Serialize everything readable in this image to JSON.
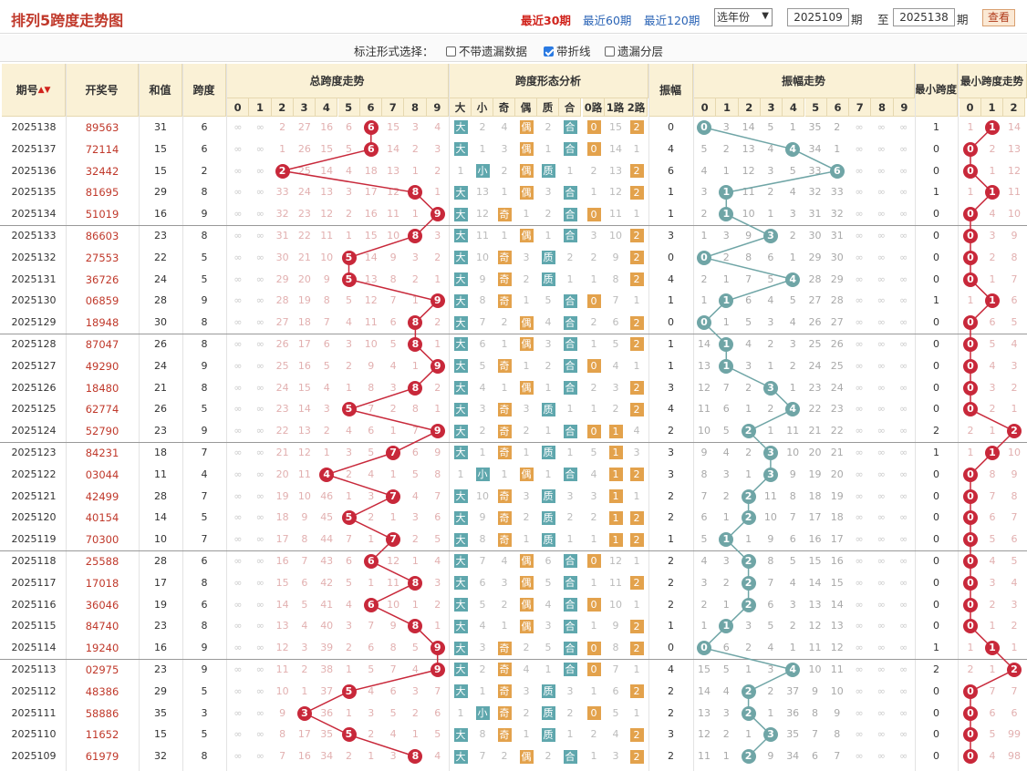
{
  "header": {
    "title": "排列5跨度走势图",
    "links": [
      "最近30期",
      "最近60期",
      "最近120期"
    ],
    "active_link": 0,
    "year_select": "选年份",
    "from_label": "期",
    "to_prefix": "至",
    "to_label": "期",
    "from_value": "2025109",
    "to_value": "2025138",
    "view_button": "查看"
  },
  "options": {
    "label": "标注形式选择：",
    "items": [
      {
        "label": "不带遗漏数据",
        "checked": false
      },
      {
        "label": "带折线",
        "checked": true
      },
      {
        "label": "遗漏分层",
        "checked": false
      }
    ]
  },
  "table_headers": {
    "period": "期号",
    "number": "开奖号",
    "sum": "和值",
    "span": "跨度",
    "span_trend": "总跨度走势",
    "shape": "跨度形态分析",
    "amp": "振幅",
    "amp_trend": "振幅走势",
    "min_span": "最小跨度",
    "min_trend": "最小跨度走势",
    "digits": [
      "0",
      "1",
      "2",
      "3",
      "4",
      "5",
      "6",
      "7",
      "8",
      "9"
    ],
    "shape_cols": [
      "大",
      "小",
      "奇",
      "偶",
      "质",
      "合",
      "0路",
      "1路",
      "2路"
    ],
    "min_cols": [
      "0",
      "1",
      "2"
    ]
  },
  "colors": {
    "red": "#c8283a",
    "teal": "#6fa5a6",
    "orange": "#e3a24c",
    "header_bg": "#faf1d6"
  },
  "rows": [
    {
      "p": "2025138",
      "n": "89563",
      "s": 31,
      "k": 6,
      "a": 0,
      "m": 1,
      "tm": [
        "∞",
        "∞",
        "2",
        "27",
        "16",
        "6",
        "6",
        "15",
        "3",
        "4"
      ],
      "sh": [
        "大",
        "2",
        "4",
        "偶",
        "2",
        "合",
        "0",
        "15",
        "2"
      ],
      "am": [
        "0",
        "3",
        "14",
        "5",
        "1",
        "35",
        "2",
        "∞",
        "∞",
        "∞"
      ],
      "mm": [
        "1",
        "1",
        "14"
      ]
    },
    {
      "p": "2025137",
      "n": "72114",
      "s": 15,
      "k": 6,
      "a": 4,
      "m": 0,
      "tm": [
        "∞",
        "∞",
        "1",
        "26",
        "15",
        "5",
        "6",
        "14",
        "2",
        "3"
      ],
      "sh": [
        "大",
        "1",
        "3",
        "偶",
        "1",
        "合",
        "0",
        "14",
        "1"
      ],
      "am": [
        "5",
        "2",
        "13",
        "4",
        "4",
        "34",
        "1",
        "∞",
        "∞",
        "∞"
      ],
      "mm": [
        "0",
        "2",
        "13"
      ]
    },
    {
      "p": "2025136",
      "n": "32442",
      "s": 15,
      "k": 2,
      "a": 6,
      "m": 0,
      "tm": [
        "∞",
        "∞",
        "2",
        "25",
        "14",
        "4",
        "18",
        "13",
        "1",
        "2"
      ],
      "sh": [
        "1",
        "小",
        "2",
        "偶",
        "质",
        "1",
        "2",
        "13",
        "2"
      ],
      "am": [
        "4",
        "1",
        "12",
        "3",
        "5",
        "33",
        "6",
        "∞",
        "∞",
        "∞"
      ],
      "mm": [
        "0",
        "1",
        "12"
      ]
    },
    {
      "p": "2025135",
      "n": "81695",
      "s": 29,
      "k": 8,
      "a": 1,
      "m": 1,
      "tm": [
        "∞",
        "∞",
        "33",
        "24",
        "13",
        "3",
        "17",
        "12",
        "8",
        "1"
      ],
      "sh": [
        "大",
        "13",
        "1",
        "偶",
        "3",
        "合",
        "1",
        "12",
        "2"
      ],
      "am": [
        "3",
        "1",
        "11",
        "2",
        "4",
        "32",
        "33",
        "∞",
        "∞",
        "∞"
      ],
      "mm": [
        "1",
        "1",
        "11"
      ]
    },
    {
      "p": "2025134",
      "n": "51019",
      "s": 16,
      "k": 9,
      "a": 1,
      "m": 0,
      "tm": [
        "∞",
        "∞",
        "32",
        "23",
        "12",
        "2",
        "16",
        "11",
        "1",
        "9"
      ],
      "sh": [
        "大",
        "12",
        "奇",
        "1",
        "2",
        "合",
        "0",
        "11",
        "1"
      ],
      "am": [
        "2",
        "1",
        "10",
        "1",
        "3",
        "31",
        "32",
        "∞",
        "∞",
        "∞"
      ],
      "mm": [
        "0",
        "4",
        "10"
      ]
    },
    {
      "p": "2025133",
      "n": "86603",
      "s": 23,
      "k": 8,
      "a": 3,
      "m": 0,
      "tm": [
        "∞",
        "∞",
        "31",
        "22",
        "11",
        "1",
        "15",
        "10",
        "8",
        "3"
      ],
      "sh": [
        "大",
        "11",
        "1",
        "偶",
        "1",
        "合",
        "3",
        "10",
        "2"
      ],
      "am": [
        "1",
        "3",
        "9",
        "3",
        "2",
        "30",
        "31",
        "∞",
        "∞",
        "∞"
      ],
      "mm": [
        "0",
        "3",
        "9"
      ]
    },
    {
      "p": "2025132",
      "n": "27553",
      "s": 22,
      "k": 5,
      "a": 0,
      "m": 0,
      "tm": [
        "∞",
        "∞",
        "30",
        "21",
        "10",
        "5",
        "14",
        "9",
        "3",
        "2"
      ],
      "sh": [
        "大",
        "10",
        "奇",
        "3",
        "质",
        "2",
        "2",
        "9",
        "2"
      ],
      "am": [
        "0",
        "2",
        "8",
        "6",
        "1",
        "29",
        "30",
        "∞",
        "∞",
        "∞"
      ],
      "mm": [
        "0",
        "2",
        "8"
      ]
    },
    {
      "p": "2025131",
      "n": "36726",
      "s": 24,
      "k": 5,
      "a": 4,
      "m": 0,
      "tm": [
        "∞",
        "∞",
        "29",
        "20",
        "9",
        "5",
        "13",
        "8",
        "2",
        "1"
      ],
      "sh": [
        "大",
        "9",
        "奇",
        "2",
        "质",
        "1",
        "1",
        "8",
        "2"
      ],
      "am": [
        "2",
        "1",
        "7",
        "5",
        "4",
        "28",
        "29",
        "∞",
        "∞",
        "∞"
      ],
      "mm": [
        "0",
        "1",
        "7"
      ]
    },
    {
      "p": "2025130",
      "n": "06859",
      "s": 28,
      "k": 9,
      "a": 1,
      "m": 1,
      "tm": [
        "∞",
        "∞",
        "28",
        "19",
        "8",
        "5",
        "12",
        "7",
        "1",
        "9"
      ],
      "sh": [
        "大",
        "8",
        "奇",
        "1",
        "5",
        "合",
        "0",
        "7",
        "1"
      ],
      "am": [
        "1",
        "1",
        "6",
        "4",
        "5",
        "27",
        "28",
        "∞",
        "∞",
        "∞"
      ],
      "mm": [
        "1",
        "1",
        "6"
      ]
    },
    {
      "p": "2025129",
      "n": "18948",
      "s": 30,
      "k": 8,
      "a": 0,
      "m": 0,
      "tm": [
        "∞",
        "∞",
        "27",
        "18",
        "7",
        "4",
        "11",
        "6",
        "8",
        "2"
      ],
      "sh": [
        "大",
        "7",
        "2",
        "偶",
        "4",
        "合",
        "2",
        "6",
        "2"
      ],
      "am": [
        "0",
        "1",
        "5",
        "3",
        "4",
        "26",
        "27",
        "∞",
        "∞",
        "∞"
      ],
      "mm": [
        "0",
        "6",
        "5"
      ]
    },
    {
      "p": "2025128",
      "n": "87047",
      "s": 26,
      "k": 8,
      "a": 1,
      "m": 0,
      "tm": [
        "∞",
        "∞",
        "26",
        "17",
        "6",
        "3",
        "10",
        "5",
        "8",
        "1"
      ],
      "sh": [
        "大",
        "6",
        "1",
        "偶",
        "3",
        "合",
        "1",
        "5",
        "2"
      ],
      "am": [
        "14",
        "1",
        "4",
        "2",
        "3",
        "25",
        "26",
        "∞",
        "∞",
        "∞"
      ],
      "mm": [
        "0",
        "5",
        "4"
      ]
    },
    {
      "p": "2025127",
      "n": "49290",
      "s": 24,
      "k": 9,
      "a": 1,
      "m": 0,
      "tm": [
        "∞",
        "∞",
        "25",
        "16",
        "5",
        "2",
        "9",
        "4",
        "1",
        "9"
      ],
      "sh": [
        "大",
        "5",
        "奇",
        "1",
        "2",
        "合",
        "0",
        "4",
        "1"
      ],
      "am": [
        "13",
        "1",
        "3",
        "1",
        "2",
        "24",
        "25",
        "∞",
        "∞",
        "∞"
      ],
      "mm": [
        "0",
        "4",
        "3"
      ]
    },
    {
      "p": "2025126",
      "n": "18480",
      "s": 21,
      "k": 8,
      "a": 3,
      "m": 0,
      "tm": [
        "∞",
        "∞",
        "24",
        "15",
        "4",
        "1",
        "8",
        "3",
        "8",
        "2"
      ],
      "sh": [
        "大",
        "4",
        "1",
        "偶",
        "1",
        "合",
        "2",
        "3",
        "2"
      ],
      "am": [
        "12",
        "7",
        "2",
        "3",
        "1",
        "23",
        "24",
        "∞",
        "∞",
        "∞"
      ],
      "mm": [
        "0",
        "3",
        "2"
      ]
    },
    {
      "p": "2025125",
      "n": "62774",
      "s": 26,
      "k": 5,
      "a": 4,
      "m": 0,
      "tm": [
        "∞",
        "∞",
        "23",
        "14",
        "3",
        "5",
        "7",
        "2",
        "8",
        "1"
      ],
      "sh": [
        "大",
        "3",
        "奇",
        "3",
        "质",
        "1",
        "1",
        "2",
        "2"
      ],
      "am": [
        "11",
        "6",
        "1",
        "2",
        "4",
        "22",
        "23",
        "∞",
        "∞",
        "∞"
      ],
      "mm": [
        "0",
        "2",
        "1"
      ]
    },
    {
      "p": "2025124",
      "n": "52790",
      "s": 23,
      "k": 9,
      "a": 2,
      "m": 2,
      "tm": [
        "∞",
        "∞",
        "22",
        "13",
        "2",
        "4",
        "6",
        "1",
        "7",
        "9"
      ],
      "sh": [
        "大",
        "2",
        "奇",
        "2",
        "1",
        "合",
        "0",
        "1",
        "4"
      ],
      "am": [
        "10",
        "5",
        "2",
        "1",
        "11",
        "21",
        "22",
        "∞",
        "∞",
        "∞"
      ],
      "mm": [
        "2",
        "1",
        "2"
      ]
    },
    {
      "p": "2025123",
      "n": "84231",
      "s": 18,
      "k": 7,
      "a": 3,
      "m": 1,
      "tm": [
        "∞",
        "∞",
        "21",
        "12",
        "1",
        "3",
        "5",
        "7",
        "6",
        "9"
      ],
      "sh": [
        "大",
        "1",
        "奇",
        "1",
        "质",
        "1",
        "5",
        "1",
        "3"
      ],
      "am": [
        "9",
        "4",
        "2",
        "3",
        "10",
        "20",
        "21",
        "∞",
        "∞",
        "∞"
      ],
      "mm": [
        "1",
        "1",
        "10"
      ]
    },
    {
      "p": "2025122",
      "n": "03044",
      "s": 11,
      "k": 4,
      "a": 3,
      "m": 0,
      "tm": [
        "∞",
        "∞",
        "20",
        "11",
        "4",
        "2",
        "4",
        "1",
        "5",
        "8"
      ],
      "sh": [
        "1",
        "小",
        "1",
        "偶",
        "1",
        "合",
        "4",
        "1",
        "2"
      ],
      "am": [
        "8",
        "3",
        "1",
        "3",
        "9",
        "19",
        "20",
        "∞",
        "∞",
        "∞"
      ],
      "mm": [
        "0",
        "8",
        "9"
      ]
    },
    {
      "p": "2025121",
      "n": "42499",
      "s": 28,
      "k": 7,
      "a": 2,
      "m": 0,
      "tm": [
        "∞",
        "∞",
        "19",
        "10",
        "46",
        "1",
        "3",
        "7",
        "4",
        "7"
      ],
      "sh": [
        "大",
        "10",
        "奇",
        "3",
        "质",
        "3",
        "3",
        "1",
        "1"
      ],
      "am": [
        "7",
        "2",
        "2",
        "11",
        "8",
        "18",
        "19",
        "∞",
        "∞",
        "∞"
      ],
      "mm": [
        "0",
        "7",
        "8"
      ]
    },
    {
      "p": "2025120",
      "n": "40154",
      "s": 14,
      "k": 5,
      "a": 2,
      "m": 0,
      "tm": [
        "∞",
        "∞",
        "18",
        "9",
        "45",
        "5",
        "2",
        "1",
        "3",
        "6"
      ],
      "sh": [
        "大",
        "9",
        "奇",
        "2",
        "质",
        "2",
        "2",
        "1",
        "2"
      ],
      "am": [
        "6",
        "1",
        "2",
        "10",
        "7",
        "17",
        "18",
        "∞",
        "∞",
        "∞"
      ],
      "mm": [
        "0",
        "6",
        "7"
      ]
    },
    {
      "p": "2025119",
      "n": "70300",
      "s": 10,
      "k": 7,
      "a": 1,
      "m": 0,
      "tm": [
        "∞",
        "∞",
        "17",
        "8",
        "44",
        "7",
        "1",
        "7",
        "2",
        "5"
      ],
      "sh": [
        "大",
        "8",
        "奇",
        "1",
        "质",
        "1",
        "1",
        "1",
        "2"
      ],
      "am": [
        "5",
        "1",
        "1",
        "9",
        "6",
        "16",
        "17",
        "∞",
        "∞",
        "∞"
      ],
      "mm": [
        "0",
        "5",
        "6"
      ]
    },
    {
      "p": "2025118",
      "n": "25588",
      "s": 28,
      "k": 6,
      "a": 2,
      "m": 0,
      "tm": [
        "∞",
        "∞",
        "16",
        "7",
        "43",
        "6",
        "6",
        "12",
        "1",
        "4"
      ],
      "sh": [
        "大",
        "7",
        "4",
        "偶",
        "6",
        "合",
        "0",
        "12",
        "1"
      ],
      "am": [
        "4",
        "3",
        "2",
        "8",
        "5",
        "15",
        "16",
        "∞",
        "∞",
        "∞"
      ],
      "mm": [
        "0",
        "4",
        "5"
      ]
    },
    {
      "p": "2025117",
      "n": "17018",
      "s": 17,
      "k": 8,
      "a": 2,
      "m": 0,
      "tm": [
        "∞",
        "∞",
        "15",
        "6",
        "42",
        "5",
        "1",
        "11",
        "8",
        "3"
      ],
      "sh": [
        "大",
        "6",
        "3",
        "偶",
        "5",
        "合",
        "1",
        "11",
        "2"
      ],
      "am": [
        "3",
        "2",
        "2",
        "7",
        "4",
        "14",
        "15",
        "∞",
        "∞",
        "∞"
      ],
      "mm": [
        "0",
        "3",
        "4"
      ]
    },
    {
      "p": "2025116",
      "n": "36046",
      "s": 19,
      "k": 6,
      "a": 2,
      "m": 0,
      "tm": [
        "∞",
        "∞",
        "14",
        "5",
        "41",
        "4",
        "6",
        "10",
        "1",
        "2"
      ],
      "sh": [
        "大",
        "5",
        "2",
        "偶",
        "4",
        "合",
        "0",
        "10",
        "1"
      ],
      "am": [
        "2",
        "1",
        "2",
        "6",
        "3",
        "13",
        "14",
        "∞",
        "∞",
        "∞"
      ],
      "mm": [
        "0",
        "2",
        "3"
      ]
    },
    {
      "p": "2025115",
      "n": "84740",
      "s": 23,
      "k": 8,
      "a": 1,
      "m": 0,
      "tm": [
        "∞",
        "∞",
        "13",
        "4",
        "40",
        "3",
        "7",
        "9",
        "8",
        "1"
      ],
      "sh": [
        "大",
        "4",
        "1",
        "偶",
        "3",
        "合",
        "1",
        "9",
        "2"
      ],
      "am": [
        "1",
        "1",
        "3",
        "5",
        "2",
        "12",
        "13",
        "∞",
        "∞",
        "∞"
      ],
      "mm": [
        "0",
        "1",
        "2"
      ]
    },
    {
      "p": "2025114",
      "n": "19240",
      "s": 16,
      "k": 9,
      "a": 0,
      "m": 1,
      "tm": [
        "∞",
        "∞",
        "12",
        "3",
        "39",
        "2",
        "6",
        "8",
        "5",
        "9"
      ],
      "sh": [
        "大",
        "3",
        "奇",
        "2",
        "5",
        "合",
        "0",
        "8",
        "2"
      ],
      "am": [
        "0",
        "6",
        "2",
        "4",
        "1",
        "11",
        "12",
        "∞",
        "∞",
        "∞"
      ],
      "mm": [
        "1",
        "2",
        "1"
      ]
    },
    {
      "p": "2025113",
      "n": "02975",
      "s": 23,
      "k": 9,
      "a": 4,
      "m": 2,
      "tm": [
        "∞",
        "∞",
        "11",
        "2",
        "38",
        "1",
        "5",
        "7",
        "4",
        "9"
      ],
      "sh": [
        "大",
        "2",
        "奇",
        "4",
        "1",
        "合",
        "0",
        "7",
        "1"
      ],
      "am": [
        "15",
        "5",
        "1",
        "3",
        "4",
        "10",
        "11",
        "∞",
        "∞",
        "∞"
      ],
      "mm": [
        "2",
        "1",
        "8"
      ]
    },
    {
      "p": "2025112",
      "n": "48386",
      "s": 29,
      "k": 5,
      "a": 2,
      "m": 0,
      "tm": [
        "∞",
        "∞",
        "10",
        "1",
        "37",
        "5",
        "4",
        "6",
        "3",
        "7"
      ],
      "sh": [
        "大",
        "1",
        "奇",
        "3",
        "质",
        "3",
        "1",
        "6",
        "2"
      ],
      "am": [
        "14",
        "4",
        "2",
        "2",
        "37",
        "9",
        "10",
        "∞",
        "∞",
        "∞"
      ],
      "mm": [
        "0",
        "7",
        "7"
      ]
    },
    {
      "p": "2025111",
      "n": "58886",
      "s": 35,
      "k": 3,
      "a": 2,
      "m": 0,
      "tm": [
        "∞",
        "∞",
        "9",
        "3",
        "36",
        "1",
        "3",
        "5",
        "2",
        "6"
      ],
      "sh": [
        "1",
        "小",
        "奇",
        "2",
        "质",
        "2",
        "0",
        "5",
        "1"
      ],
      "am": [
        "13",
        "3",
        "2",
        "1",
        "36",
        "8",
        "9",
        "∞",
        "∞",
        "∞"
      ],
      "mm": [
        "0",
        "6",
        "6"
      ]
    },
    {
      "p": "2025110",
      "n": "11652",
      "s": 15,
      "k": 5,
      "a": 3,
      "m": 0,
      "tm": [
        "∞",
        "∞",
        "8",
        "17",
        "35",
        "5",
        "2",
        "4",
        "1",
        "5"
      ],
      "sh": [
        "大",
        "8",
        "奇",
        "1",
        "质",
        "1",
        "2",
        "4",
        "2"
      ],
      "am": [
        "12",
        "2",
        "1",
        "3",
        "35",
        "7",
        "8",
        "∞",
        "∞",
        "∞"
      ],
      "mm": [
        "0",
        "5",
        "99"
      ]
    },
    {
      "p": "2025109",
      "n": "61979",
      "s": 32,
      "k": 8,
      "a": 2,
      "m": 0,
      "tm": [
        "∞",
        "∞",
        "7",
        "16",
        "34",
        "2",
        "1",
        "3",
        "8",
        "4"
      ],
      "sh": [
        "大",
        "7",
        "2",
        "偶",
        "2",
        "合",
        "1",
        "3",
        "2"
      ],
      "am": [
        "11",
        "1",
        "2",
        "9",
        "34",
        "6",
        "7",
        "∞",
        "∞",
        "∞"
      ],
      "mm": [
        "0",
        "4",
        "98"
      ]
    }
  ]
}
